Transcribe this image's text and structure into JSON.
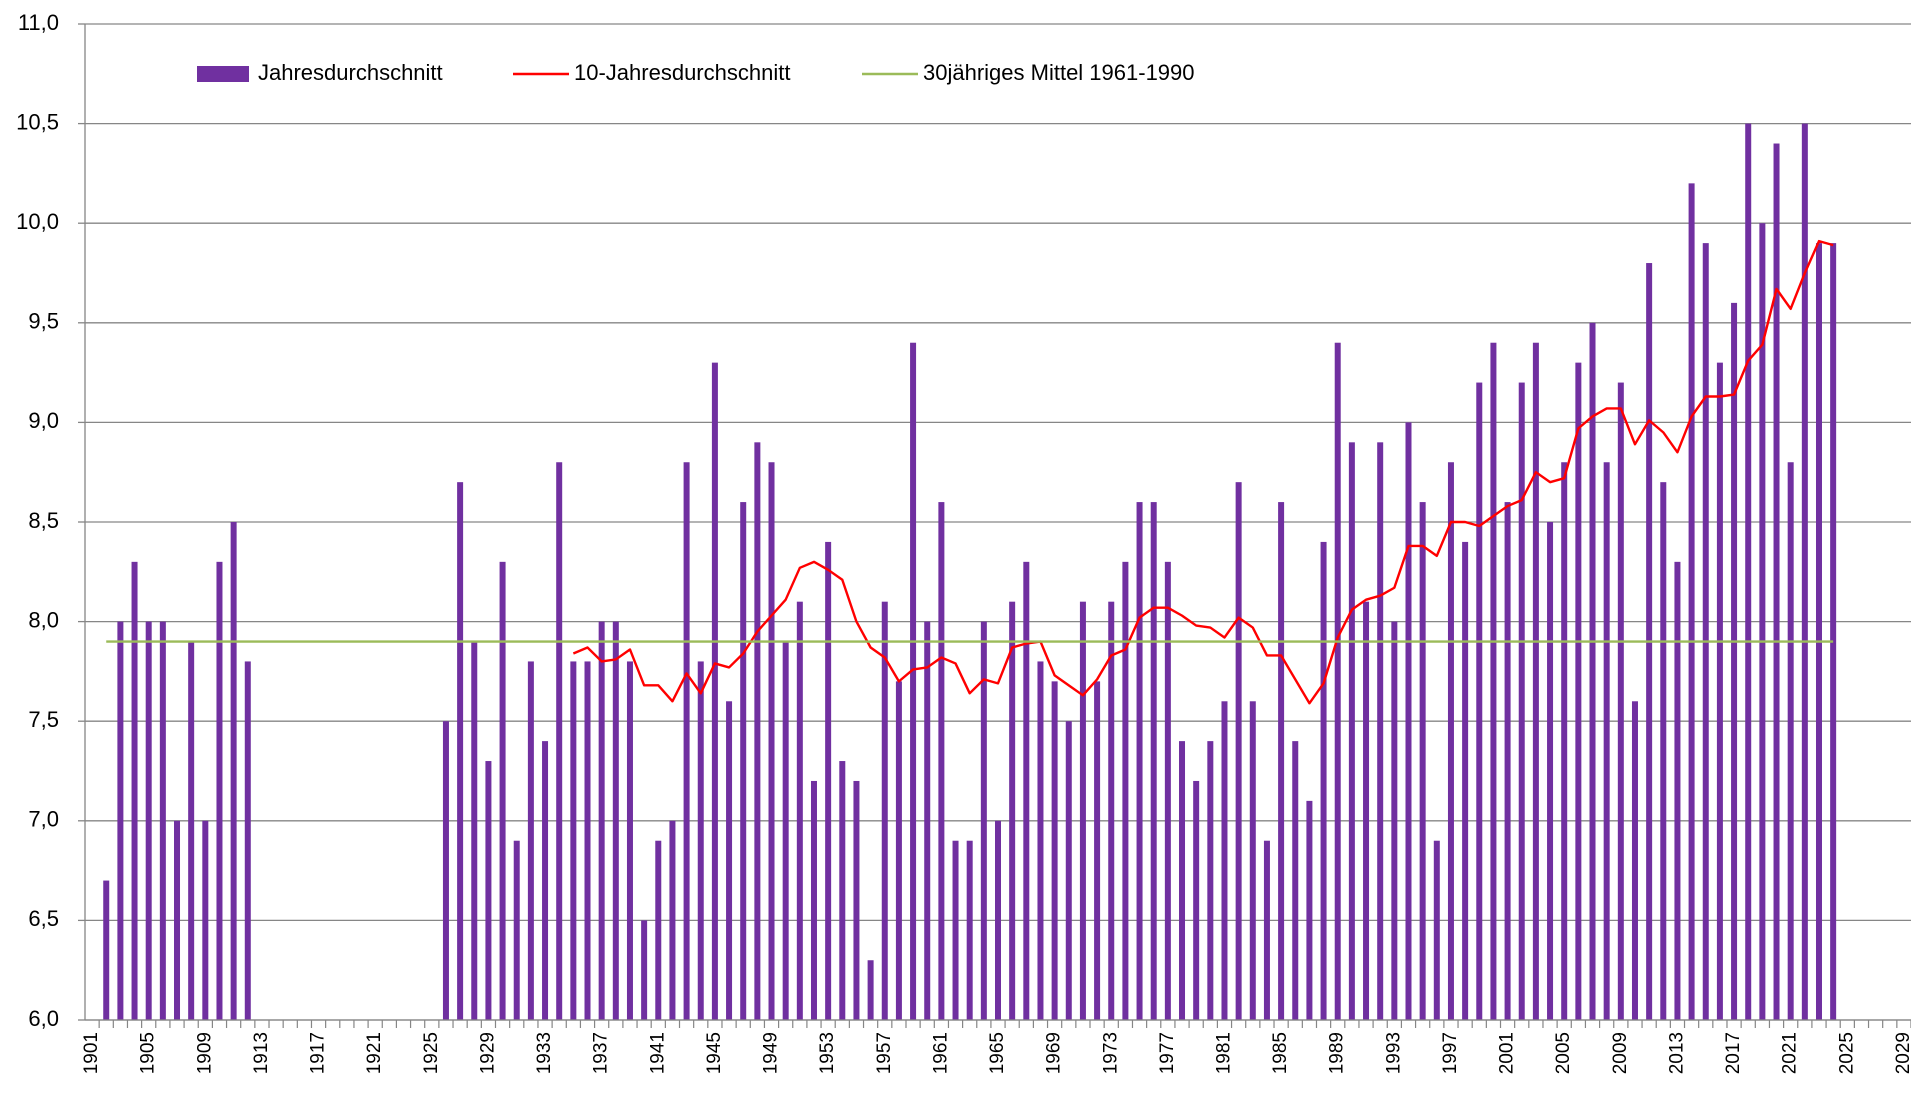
{
  "chart_data": {
    "type": "bar",
    "categories": [
      "1901",
      null,
      null,
      null,
      "1905",
      null,
      null,
      null,
      "1909",
      null,
      null,
      null,
      "1913",
      null,
      null,
      null,
      "1917",
      null,
      null,
      null,
      "1921",
      null,
      null,
      null,
      "1925",
      null,
      null,
      null,
      "1929",
      null,
      null,
      null,
      "1933",
      null,
      null,
      null,
      "1937",
      null,
      null,
      null,
      "1941",
      null,
      null,
      null,
      "1945",
      null,
      null,
      null,
      "1949",
      null,
      null,
      null,
      "1953",
      null,
      null,
      null,
      "1957",
      null,
      null,
      null,
      "1961",
      null,
      null,
      null,
      "1965",
      null,
      null,
      null,
      "1969",
      null,
      null,
      null,
      "1973",
      null,
      null,
      null,
      "1977",
      null,
      null,
      null,
      "1981",
      null,
      null,
      null,
      "1985",
      null,
      null,
      null,
      "1989",
      null,
      null,
      null,
      "1993",
      null,
      null,
      null,
      "1997",
      null,
      null,
      null,
      "2001",
      null,
      null,
      null,
      "2005",
      null,
      null,
      null,
      "2009",
      null,
      null,
      null,
      "2013",
      null,
      null,
      null,
      "2017",
      null,
      null,
      null,
      "2021",
      null,
      null,
      null,
      "2025",
      null,
      null,
      null,
      "2029"
    ],
    "series": [
      {
        "name": "Jahresdurchschnitt",
        "type": "bar",
        "color": "#7030a0",
        "values": [
          null,
          6.7,
          8.0,
          8.3,
          8.0,
          8.0,
          7.0,
          7.9,
          7.0,
          8.3,
          8.5,
          7.8,
          null,
          null,
          null,
          null,
          null,
          null,
          null,
          null,
          null,
          null,
          null,
          null,
          null,
          7.5,
          8.7,
          7.9,
          7.3,
          8.3,
          6.9,
          7.8,
          7.4,
          8.8,
          7.8,
          7.8,
          8.0,
          8.0,
          7.8,
          6.5,
          6.9,
          7.0,
          8.8,
          7.8,
          9.3,
          7.6,
          8.6,
          8.9,
          8.8,
          7.9,
          8.1,
          7.2,
          8.4,
          7.3,
          7.2,
          6.3,
          8.1,
          7.7,
          9.4,
          8.0,
          8.6,
          6.9,
          6.9,
          8.0,
          7.0,
          8.1,
          8.3,
          7.8,
          7.7,
          7.5,
          8.1,
          7.7,
          8.1,
          8.3,
          8.6,
          8.6,
          8.3,
          7.4,
          7.2,
          7.4,
          7.6,
          8.7,
          7.6,
          6.9,
          8.6,
          7.4,
          7.1,
          8.4,
          9.4,
          8.9,
          8.1,
          8.9,
          8.0,
          9.0,
          8.6,
          6.9,
          8.8,
          8.4,
          9.2,
          9.4,
          8.6,
          9.2,
          9.4,
          8.5,
          8.8,
          9.3,
          9.5,
          8.8,
          9.2,
          7.6,
          9.8,
          8.7,
          8.3,
          10.2,
          9.9,
          9.3,
          9.6,
          10.5,
          10.0,
          10.4,
          8.8,
          10.5,
          9.9,
          9.9,
          null,
          null,
          null,
          null,
          null
        ]
      },
      {
        "name": "10-Jahresdurchschnitt",
        "type": "line",
        "color": "#ff0000",
        "values": [
          null,
          null,
          null,
          null,
          null,
          null,
          null,
          null,
          null,
          null,
          null,
          null,
          null,
          null,
          null,
          null,
          null,
          null,
          null,
          null,
          null,
          null,
          null,
          null,
          null,
          null,
          null,
          null,
          null,
          null,
          null,
          null,
          null,
          null,
          7.84,
          7.87,
          7.8,
          7.81,
          7.86,
          7.68,
          7.68,
          7.6,
          7.74,
          7.64,
          7.79,
          7.77,
          7.84,
          7.95,
          8.03,
          8.11,
          8.27,
          8.3,
          8.26,
          8.21,
          8.0,
          7.87,
          7.82,
          7.7,
          7.76,
          7.77,
          7.82,
          7.79,
          7.64,
          7.71,
          7.69,
          7.87,
          7.89,
          7.9,
          7.73,
          7.68,
          7.63,
          7.71,
          7.83,
          7.86,
          8.02,
          8.07,
          8.07,
          8.03,
          7.98,
          7.97,
          7.92,
          8.02,
          7.97,
          7.83,
          7.83,
          7.71,
          7.59,
          7.69,
          7.92,
          8.06,
          8.11,
          8.13,
          8.17,
          8.38,
          8.38,
          8.33,
          8.5,
          8.5,
          8.48,
          8.53,
          8.58,
          8.61,
          8.75,
          8.7,
          8.72,
          8.97,
          9.03,
          9.07,
          9.07,
          8.89,
          9.01,
          8.95,
          8.85,
          9.03,
          9.13,
          9.13,
          9.14,
          9.31,
          9.39,
          9.67,
          9.57,
          9.75,
          9.91,
          9.89,
          null,
          null,
          null,
          null,
          null
        ]
      },
      {
        "name": "30jähriges Mittel 1961-1990",
        "type": "line",
        "color": "#9bbb59",
        "values": [
          null,
          7.9,
          7.9,
          7.9,
          7.9,
          7.9,
          7.9,
          7.9,
          7.9,
          7.9,
          7.9,
          7.9,
          7.9,
          7.9,
          7.9,
          7.9,
          7.9,
          7.9,
          7.9,
          7.9,
          7.9,
          7.9,
          7.9,
          7.9,
          7.9,
          7.9,
          7.9,
          7.9,
          7.9,
          7.9,
          7.9,
          7.9,
          7.9,
          7.9,
          7.9,
          7.9,
          7.9,
          7.9,
          7.9,
          7.9,
          7.9,
          7.9,
          7.9,
          7.9,
          7.9,
          7.9,
          7.9,
          7.9,
          7.9,
          7.9,
          7.9,
          7.9,
          7.9,
          7.9,
          7.9,
          7.9,
          7.9,
          7.9,
          7.9,
          7.9,
          7.9,
          7.9,
          7.9,
          7.9,
          7.9,
          7.9,
          7.9,
          7.9,
          7.9,
          7.9,
          7.9,
          7.9,
          7.9,
          7.9,
          7.9,
          7.9,
          7.9,
          7.9,
          7.9,
          7.9,
          7.9,
          7.9,
          7.9,
          7.9,
          7.9,
          7.9,
          7.9,
          7.9,
          7.9,
          7.9,
          7.9,
          7.9,
          7.9,
          7.9,
          7.9,
          7.9,
          7.9,
          7.9,
          7.9,
          7.9,
          7.9,
          7.9,
          7.9,
          7.9,
          7.9,
          7.9,
          7.9,
          7.9,
          7.9,
          7.9,
          7.9,
          7.9,
          7.9,
          7.9,
          7.9,
          7.9,
          7.9,
          7.9,
          7.9,
          7.9,
          7.9,
          7.9,
          7.9,
          7.9,
          null,
          null,
          null,
          null,
          null
        ]
      }
    ],
    "ylim": [
      6.0,
      11.0
    ],
    "yticks": [
      {
        "value": 6.0,
        "label": "6,0"
      },
      {
        "value": 6.5,
        "label": "6,5"
      },
      {
        "value": 7.0,
        "label": "7,0"
      },
      {
        "value": 7.5,
        "label": "7,5"
      },
      {
        "value": 8.0,
        "label": "8,0"
      },
      {
        "value": 8.5,
        "label": "8,5"
      },
      {
        "value": 9.0,
        "label": "9,0"
      },
      {
        "value": 9.5,
        "label": "9,5"
      },
      {
        "value": 10.0,
        "label": "10,0"
      },
      {
        "value": 10.5,
        "label": "10,5"
      },
      {
        "value": 11.0,
        "label": "11,0"
      }
    ],
    "grid": true,
    "legend": "top"
  }
}
